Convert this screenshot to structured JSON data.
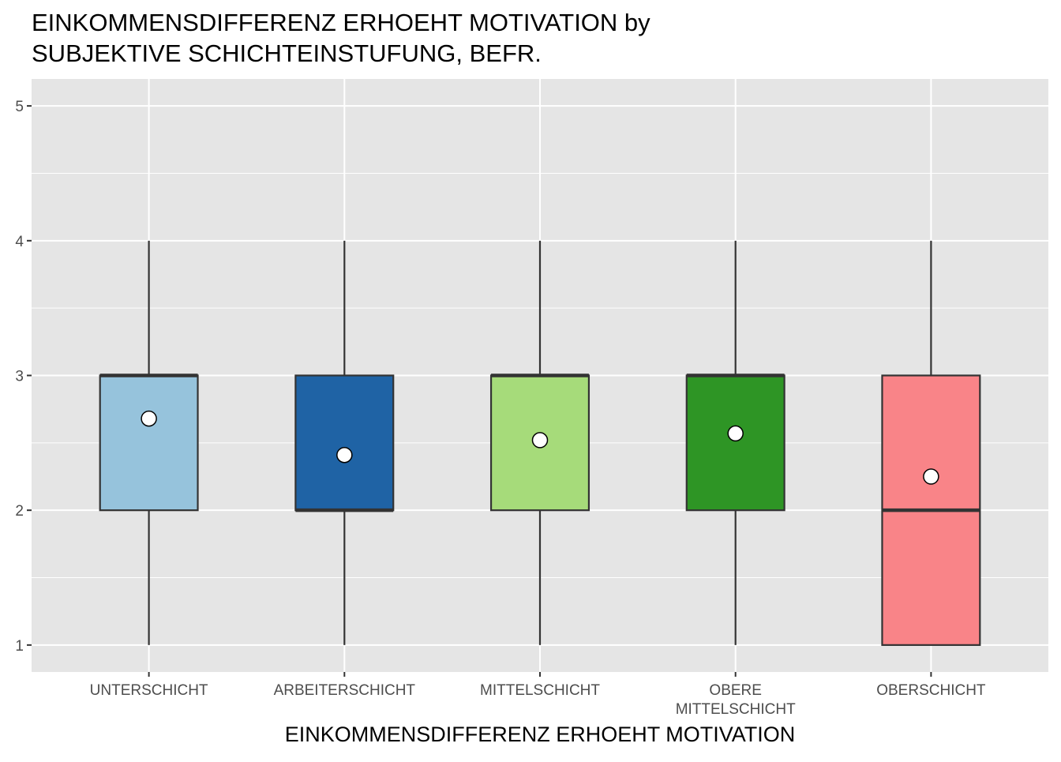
{
  "chart_data": {
    "type": "boxplot",
    "title_line1": "EINKOMMENSDIFFERENZ ERHOEHT MOTIVATION by",
    "title_line2": "SUBJEKTIVE SCHICHTEINSTUFUNG, BEFR.",
    "xlabel": "EINKOMMENSDIFFERENZ ERHOEHT MOTIVATION",
    "ylabel": "",
    "ylim": [
      1,
      5
    ],
    "yticks": [
      1,
      2,
      3,
      4,
      5
    ],
    "grid": true,
    "categories": [
      [
        "UNTERSCHICHT"
      ],
      [
        "ARBEITERSCHICHT"
      ],
      [
        "MITTELSCHICHT"
      ],
      [
        "OBERE",
        "MITTELSCHICHT"
      ],
      [
        "OBERSCHICHT"
      ]
    ],
    "boxes": [
      {
        "min": 1,
        "q1": 2,
        "median": 3,
        "q3": 3,
        "max": 4,
        "mean": 2.68,
        "color": "#96C3DC"
      },
      {
        "min": 1,
        "q1": 2,
        "median": 2,
        "q3": 3,
        "max": 4,
        "mean": 2.41,
        "color": "#1F63A5"
      },
      {
        "min": 1,
        "q1": 2,
        "median": 3,
        "q3": 3,
        "max": 4,
        "mean": 2.52,
        "color": "#A6DB7A"
      },
      {
        "min": 1,
        "q1": 2,
        "median": 3,
        "q3": 3,
        "max": 4,
        "mean": 2.57,
        "color": "#2E9525"
      },
      {
        "min": 1,
        "q1": 1,
        "median": 2,
        "q3": 3,
        "max": 4,
        "mean": 2.25,
        "color": "#F98488"
      }
    ]
  }
}
